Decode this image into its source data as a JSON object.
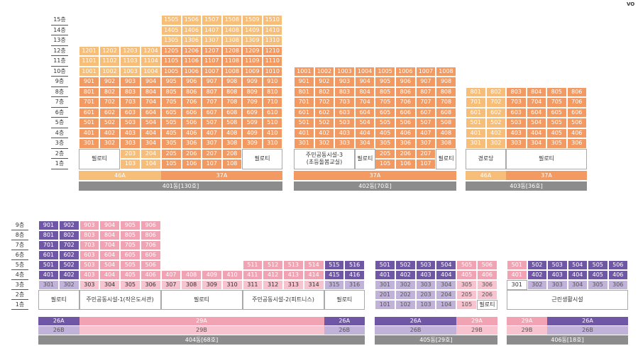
{
  "colors": {
    "orange": "#f39a62",
    "orangeLight": "#f7be7a",
    "purple": "#7057a5",
    "purpleLight": "#c0b2d8",
    "pink": "#f2a3b3",
    "pinkLight": "#f6c3cf",
    "gray": "#8c8c8c",
    "white": "#ffffff"
  },
  "corner_label": "VO",
  "floors_top": [
    "15층",
    "14층",
    "13층",
    "12층",
    "11층",
    "10층",
    "9층",
    "8층",
    "7층",
    "6층",
    "5층",
    "4층",
    "3층",
    "2층",
    "1층"
  ],
  "floors_bottom": [
    "9층",
    "8층",
    "7층",
    "6층",
    "5층",
    "4층",
    "3층",
    "2층",
    "1층"
  ],
  "labels": {
    "piloti": "필로티",
    "community3": "주민공동시설-3",
    "community3_sub": "(초등돌봄교실)",
    "senior": "경로당",
    "community1": "주민공동시설-1(작은도서관)",
    "community2": "주민공동시설-2(피트니스)",
    "neighborhood": "근린생활시설"
  },
  "types": {
    "t46A": "46A",
    "t37A": "37A",
    "t26A": "26A",
    "t26B": "26B",
    "t29A": "29A",
    "t29B": "29B"
  },
  "buildings": {
    "b401": "401동[130호]",
    "b402": "402동[70호]",
    "b403": "403동[36호]",
    "b404": "404동[68호]",
    "b405": "405동[29호]",
    "b406": "406동[18호]"
  }
}
